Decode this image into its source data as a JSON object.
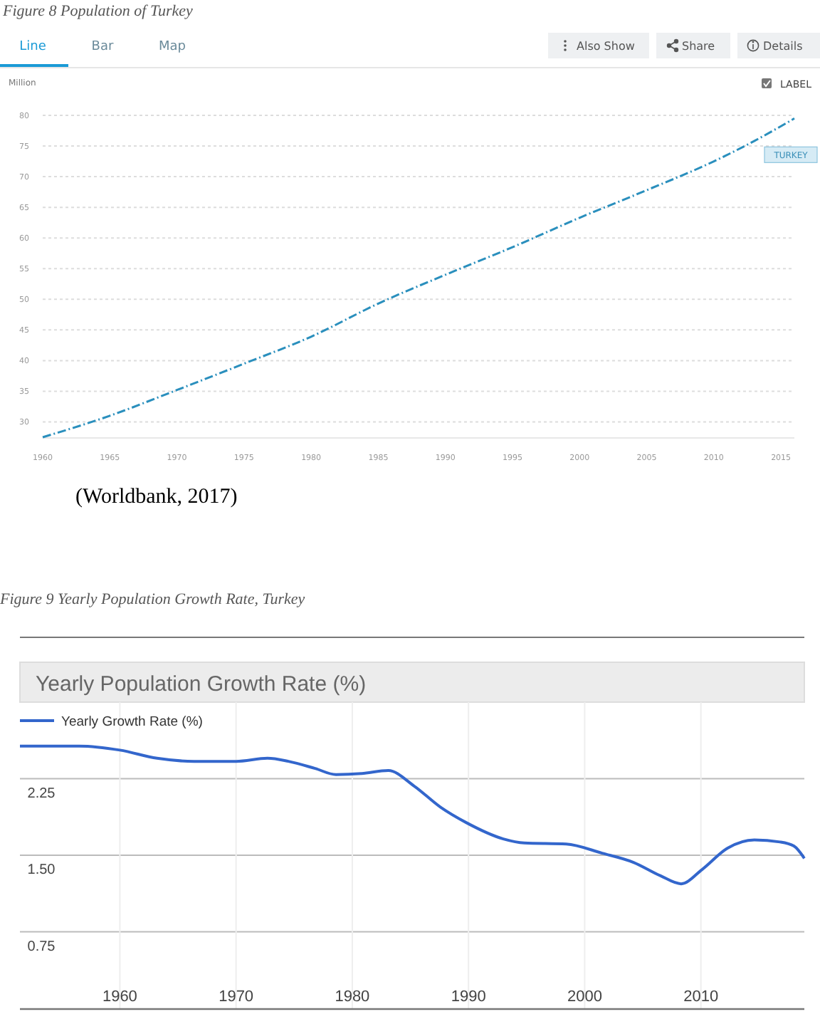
{
  "chart_data": [
    {
      "type": "line",
      "title": "Figure 8 Population of Turkey",
      "ylabel": "Million",
      "x": [
        1960,
        1965,
        1970,
        1975,
        1980,
        1985,
        1990,
        1995,
        2000,
        2005,
        2010,
        2013,
        2016
      ],
      "series": [
        {
          "name": "TURKEY",
          "color": "#2a8fbd",
          "values": [
            27.5,
            31.0,
            35.2,
            39.5,
            43.9,
            49.3,
            54.0,
            58.5,
            63.3,
            67.8,
            72.5,
            75.8,
            79.5
          ]
        }
      ],
      "xlim": [
        1960,
        2016
      ],
      "ylim": [
        27.5,
        80
      ],
      "xticks": [
        1960,
        1965,
        1970,
        1975,
        1980,
        1985,
        1990,
        1995,
        2000,
        2005,
        2010,
        2015
      ],
      "yticks": [
        30,
        35,
        40,
        45,
        50,
        55,
        60,
        65,
        70,
        75,
        80
      ],
      "grid": "y",
      "marker": "none",
      "line_style": "dashed",
      "legend": false,
      "annotations": [
        "Line",
        "Bar",
        "Map",
        "Also Show",
        "Share",
        "Details",
        "LABEL",
        "(Worldbank, 2017)"
      ]
    },
    {
      "type": "line",
      "title": "Yearly Population Growth Rate (%)",
      "x": [
        1951.4,
        1956.5,
        1960,
        1963.2,
        1966.4,
        1970,
        1972.7,
        1974.5,
        1976.8,
        1978.6,
        1980.8,
        1983.1,
        1985.3,
        1987.6,
        1989.8,
        1993,
        1994.8,
        1998.4,
        2001.5,
        2004.2,
        2006.5,
        2008.3,
        2010.1,
        2012.3,
        2014.6,
        2016.8,
        2018,
        2018.9
      ],
      "series": [
        {
          "name": "Yearly Growth Rate (%)",
          "color": "#3366cc",
          "values": [
            2.57,
            2.57,
            2.53,
            2.45,
            2.42,
            2.42,
            2.45,
            2.42,
            2.35,
            2.29,
            2.3,
            2.33,
            2.18,
            1.97,
            1.82,
            1.66,
            1.62,
            1.61,
            1.52,
            1.43,
            1.3,
            1.22,
            1.36,
            1.57,
            1.65,
            1.63,
            1.59,
            1.47
          ]
        }
      ],
      "xlim": [
        1951.4,
        2018.9
      ],
      "xticks": [
        1960,
        1970,
        1980,
        1990,
        2000,
        2010
      ],
      "ylim": [
        0,
        3
      ],
      "yticks": [
        {
          "value": 0.75,
          "label": "0.75"
        },
        {
          "value": 1.5,
          "label": "1.50"
        },
        {
          "value": 2.25,
          "label": "2.25"
        }
      ],
      "grid": true,
      "marker": "none",
      "line_style": "solid",
      "legend": "top left",
      "annotations": [
        "Figure 9 Yearly Population Growth Rate, Turkey"
      ]
    }
  ]
}
